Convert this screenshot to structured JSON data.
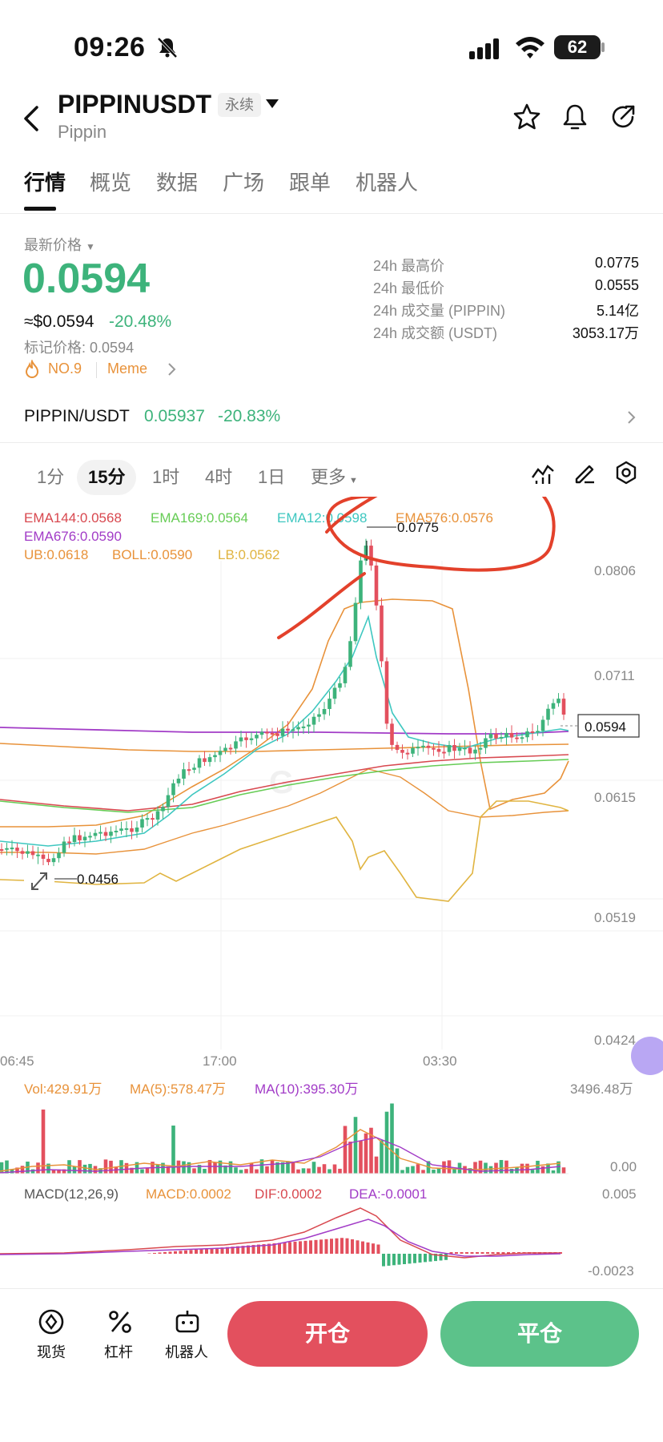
{
  "status": {
    "time": "09:26",
    "battery": "62"
  },
  "header": {
    "symbol": "PIPPINUSDT",
    "contract_type": "永续",
    "name": "Pippin"
  },
  "tabs": [
    "行情",
    "概览",
    "数据",
    "广场",
    "跟单",
    "机器人"
  ],
  "price": {
    "label": "最新价格",
    "last": "0.0594",
    "usd": "≈$0.0594",
    "change": "-20.48%",
    "mark_label": "标记价格:",
    "mark": "0.0594",
    "rank": "NO.9",
    "tag": "Meme"
  },
  "stats": [
    {
      "label": "24h 最高价",
      "value": "0.0775"
    },
    {
      "label": "24h 最低价",
      "value": "0.0555"
    },
    {
      "label": "24h 成交量 (PIPPIN)",
      "value": "5.14亿"
    },
    {
      "label": "24h 成交额 (USDT)",
      "value": "3053.17万"
    }
  ],
  "spot_pair": {
    "name": "PIPPIN/USDT",
    "price": "0.05937",
    "change": "-20.83%"
  },
  "intervals": [
    "1分",
    "15分",
    "1时",
    "4时",
    "1日",
    "更多"
  ],
  "indicators": {
    "ema144": "EMA144:0.0568",
    "ema169": "EMA169:0.0564",
    "ema12": "EMA12:0.0598",
    "ema576": "EMA576:0.0576",
    "ema676": "EMA676:0.0590",
    "ub": "UB:0.0618",
    "boll": "BOLL:0.0590",
    "lb": "LB:0.0562"
  },
  "chart": {
    "price_axis": [
      "0.0806",
      "0.0711",
      "0.0615",
      "0.0519",
      "0.0424"
    ],
    "time_axis": [
      "06:45",
      "17:00",
      "03:30"
    ],
    "high_marker": "0.0775",
    "low_marker": "0.0456",
    "current_price": "0.0594"
  },
  "volume": {
    "vol": "Vol:429.91万",
    "ma5": "MA(5):578.47万",
    "ma10": "MA(10):395.30万",
    "axis_top": "3496.48万",
    "axis_bottom": "0.00"
  },
  "macd": {
    "label": "MACD(12,26,9)",
    "macd": "MACD:0.0002",
    "dif": "DIF:0.0002",
    "dea": "DEA:-0.0001",
    "axis_top": "0.005",
    "axis_bottom": "-0.0023"
  },
  "bottom_nav": [
    "现货",
    "杠杆",
    "机器人"
  ],
  "actions": {
    "open": "开仓",
    "close": "平仓"
  },
  "colors": {
    "up": "#3db37b",
    "down": "#e3505e",
    "accent": "#e8923a"
  }
}
